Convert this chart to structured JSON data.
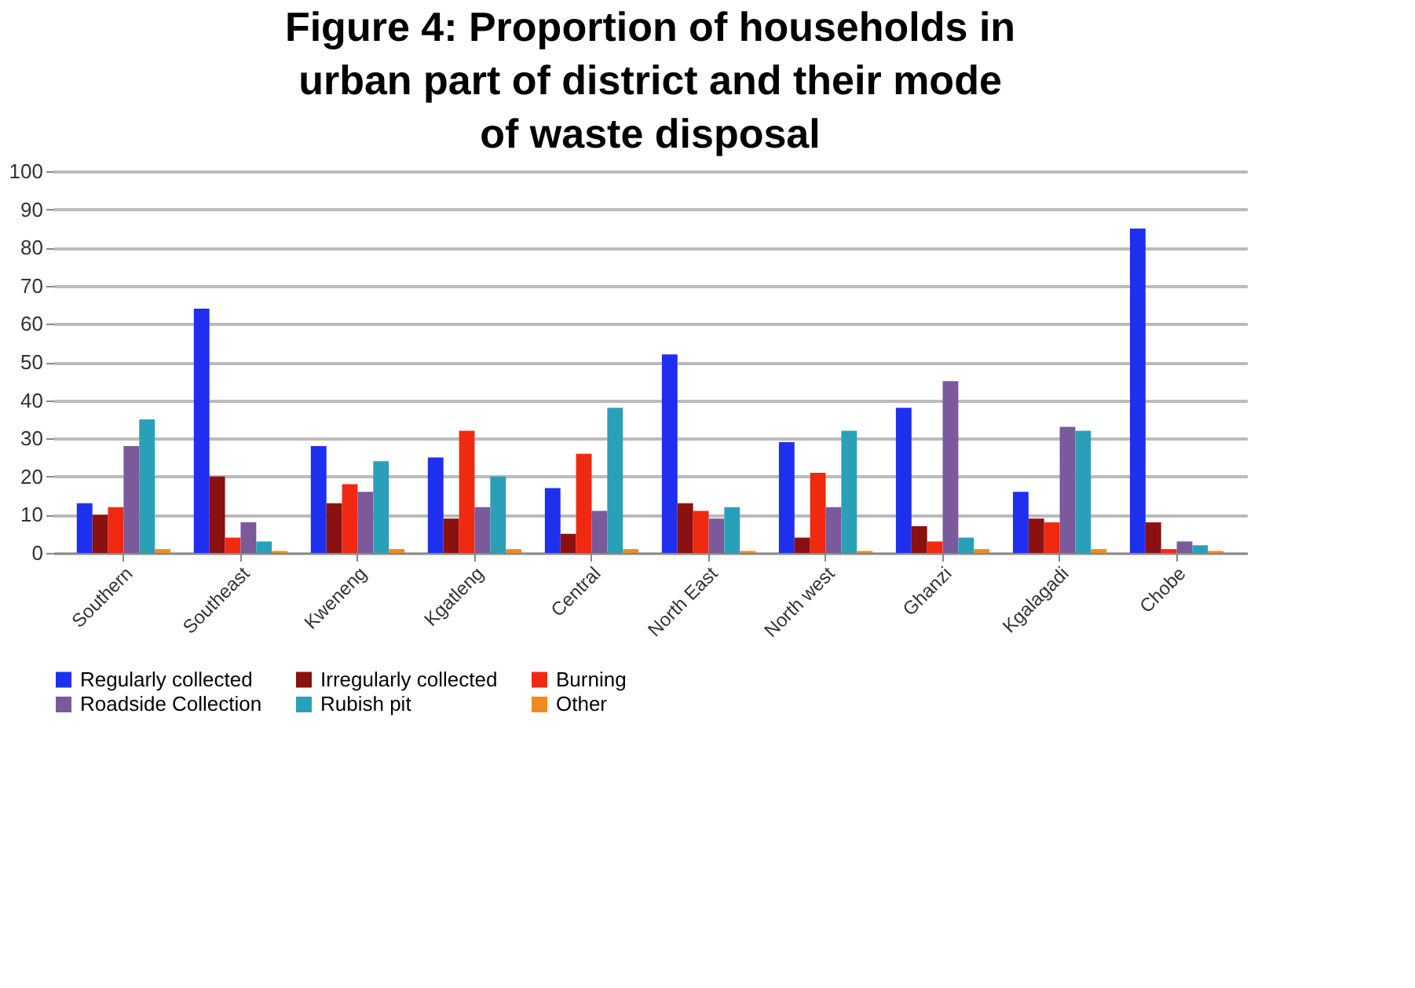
{
  "chart_data": {
    "type": "bar",
    "title": "Figure 4: Proportion of households in urban part of district and their mode of waste disposal",
    "categories": [
      "Southern",
      "Southeast",
      "Kweneng",
      "Kgatleng",
      "Central",
      "North East",
      "North west",
      "Ghanzi",
      "Kgalagadi",
      "Chobe"
    ],
    "series": [
      {
        "name": "Regularly collected",
        "color": "#1f2ff0",
        "values": [
          13,
          64,
          28,
          25,
          17,
          52,
          29,
          38,
          16,
          85
        ]
      },
      {
        "name": "Irregularly collected",
        "color": "#8b1010",
        "values": [
          10,
          20,
          13,
          9,
          5,
          13,
          4,
          7,
          9,
          8
        ]
      },
      {
        "name": "Burning",
        "color": "#f02a10",
        "values": [
          12,
          4,
          18,
          32,
          26,
          11,
          21,
          3,
          8,
          1
        ]
      },
      {
        "name": "Roadside Collection",
        "color": "#7a5a9a",
        "values": [
          28,
          8,
          16,
          12,
          11,
          9,
          12,
          45,
          33,
          3
        ]
      },
      {
        "name": "Rubish pit",
        "color": "#2aa0b8",
        "values": [
          35,
          3,
          24,
          20,
          38,
          12,
          32,
          4,
          32,
          2
        ]
      },
      {
        "name": "Other",
        "color": "#f08a20",
        "values": [
          1,
          0.5,
          1,
          1,
          1,
          0.5,
          0.5,
          1,
          1,
          0.5
        ]
      }
    ],
    "ylim": [
      0,
      100
    ],
    "yticks": [
      0,
      10,
      20,
      30,
      40,
      50,
      60,
      70,
      80,
      90,
      100
    ],
    "grid": "y",
    "legend": "bottom"
  }
}
